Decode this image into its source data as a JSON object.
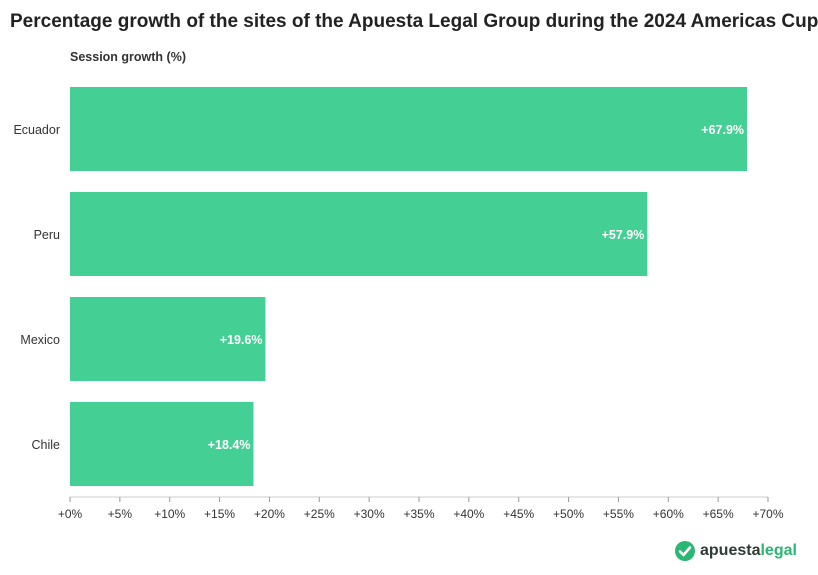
{
  "title": "Percentage growth of the sites of the Apuesta Legal Group during the 2024 Americas Cup",
  "logo": {
    "part1": "apuesta",
    "part2": "legal"
  },
  "colors": {
    "bar": "#44cf95",
    "text": "#333333",
    "axis": "#cccccc",
    "brand": "#2bb673"
  },
  "chart_data": {
    "type": "bar",
    "orientation": "horizontal",
    "ylabel": "Session growth (%)",
    "categories": [
      "Ecuador",
      "Peru",
      "Mexico",
      "Chile"
    ],
    "values": [
      67.9,
      57.9,
      19.6,
      18.4
    ],
    "value_labels": [
      "+67.9%",
      "+57.9%",
      "+19.6%",
      "+18.4%"
    ],
    "xlim": [
      0,
      70
    ],
    "xticks": [
      0,
      5,
      10,
      15,
      20,
      25,
      30,
      35,
      40,
      45,
      50,
      55,
      60,
      65,
      70
    ],
    "xtick_labels": [
      "+0%",
      "+5%",
      "+10%",
      "+15%",
      "+20%",
      "+25%",
      "+30%",
      "+35%",
      "+40%",
      "+45%",
      "+50%",
      "+55%",
      "+60%",
      "+65%",
      "+70%"
    ],
    "grid": false,
    "legend": "none"
  }
}
